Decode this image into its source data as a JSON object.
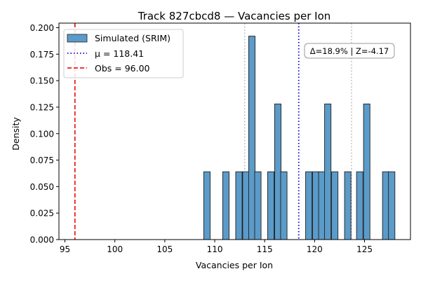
{
  "chart_data": {
    "type": "bar",
    "title": "Track 827cbcd8 — Vacancies per Ion",
    "xlabel": "Vacancies per Ion",
    "ylabel": "Density",
    "xlim": [
      94.4,
      129.6
    ],
    "ylim": [
      0,
      0.2043
    ],
    "xticks": [
      95,
      100,
      105,
      110,
      115,
      120,
      125
    ],
    "xtick_labels": [
      "95",
      "100",
      "105",
      "110",
      "115",
      "120",
      "125"
    ],
    "yticks": [
      0,
      0.025,
      0.05,
      0.075,
      0.1,
      0.125,
      0.15,
      0.175,
      0.2
    ],
    "ytick_labels": [
      "0.000",
      "0.025",
      "0.050",
      "0.075",
      "0.100",
      "0.125",
      "0.150",
      "0.175",
      "0.200"
    ],
    "bin_width": 0.64,
    "series": [
      {
        "name": "Simulated (SRIM)",
        "color": "#5b9bc9",
        "bins": [
          {
            "x0": 108.9,
            "density": 0.064
          },
          {
            "x0": 110.8,
            "density": 0.064
          },
          {
            "x0": 112.1,
            "density": 0.064
          },
          {
            "x0": 112.8,
            "density": 0.064
          },
          {
            "x0": 113.4,
            "density": 0.192
          },
          {
            "x0": 114.0,
            "density": 0.064
          },
          {
            "x0": 115.3,
            "density": 0.064
          },
          {
            "x0": 116.0,
            "density": 0.128
          },
          {
            "x0": 116.6,
            "density": 0.064
          },
          {
            "x0": 119.1,
            "density": 0.064
          },
          {
            "x0": 119.8,
            "density": 0.064
          },
          {
            "x0": 120.4,
            "density": 0.064
          },
          {
            "x0": 121.0,
            "density": 0.128
          },
          {
            "x0": 121.7,
            "density": 0.064
          },
          {
            "x0": 123.0,
            "density": 0.064
          },
          {
            "x0": 124.2,
            "density": 0.064
          },
          {
            "x0": 124.9,
            "density": 0.128
          },
          {
            "x0": 126.8,
            "density": 0.064
          },
          {
            "x0": 127.4,
            "density": 0.064
          }
        ]
      }
    ],
    "mean": {
      "label": "μ = 118.41",
      "value": 118.41,
      "color": "#0000cc"
    },
    "observed": {
      "label": "Obs = 96.00",
      "value": 96.0,
      "color": "#e8201a"
    },
    "sigma_lines": [
      113.0,
      123.7
    ],
    "annotation": "Δ=18.9% | Z=-4.17",
    "legend_position": "upper-left"
  }
}
